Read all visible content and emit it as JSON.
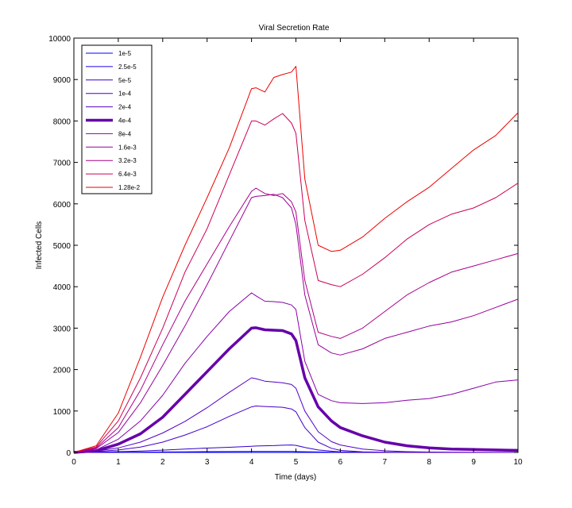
{
  "chart_data": {
    "type": "line",
    "title": "Viral Secretion Rate",
    "xlabel": "Time (days)",
    "ylabel": "Infected Cells",
    "xlim": [
      0,
      10
    ],
    "ylim": [
      0,
      10000
    ],
    "xticks": [
      0,
      1,
      2,
      3,
      4,
      5,
      6,
      7,
      8,
      9,
      10
    ],
    "yticks": [
      0,
      1000,
      2000,
      3000,
      4000,
      5000,
      6000,
      7000,
      8000,
      9000,
      10000
    ],
    "legend_position": "top-left",
    "x": [
      0,
      0.5,
      1,
      1.5,
      2,
      2.5,
      3,
      3.5,
      4,
      4.1,
      4.3,
      4.5,
      4.7,
      4.9,
      5,
      5.2,
      5.5,
      5.8,
      6,
      6.5,
      7,
      7.5,
      8,
      8.5,
      9,
      9.5,
      10
    ],
    "series": [
      {
        "name": "1e-5",
        "color": "#0000ff",
        "width": 1.0,
        "values": [
          0,
          0,
          0,
          0,
          0,
          0,
          0,
          0,
          0,
          0,
          0,
          0,
          0,
          0,
          0,
          0,
          0,
          0,
          0,
          0,
          0,
          0,
          0,
          0,
          0,
          0,
          0
        ]
      },
      {
        "name": "2.5e-5",
        "color": "#1a00ee",
        "width": 1.0,
        "values": [
          0,
          2,
          5,
          8,
          12,
          15,
          20,
          22,
          25,
          25,
          25,
          24,
          24,
          23,
          22,
          18,
          12,
          8,
          5,
          3,
          2,
          1,
          1,
          1,
          0,
          0,
          0
        ]
      },
      {
        "name": "5e-5",
        "color": "#3300cc",
        "width": 1.0,
        "values": [
          0,
          8,
          20,
          35,
          55,
          80,
          105,
          125,
          150,
          155,
          160,
          165,
          175,
          180,
          170,
          120,
          60,
          30,
          15,
          5,
          2,
          1,
          0,
          0,
          0,
          0,
          0
        ]
      },
      {
        "name": "1e-4",
        "color": "#4400cc",
        "width": 1.0,
        "values": [
          0,
          20,
          60,
          130,
          250,
          420,
          620,
          870,
          1100,
          1120,
          1110,
          1100,
          1090,
          1050,
          980,
          600,
          250,
          100,
          50,
          15,
          5,
          2,
          1,
          0,
          0,
          0,
          0
        ]
      },
      {
        "name": "2e-4",
        "color": "#5500c8",
        "width": 1.0,
        "values": [
          0,
          30,
          110,
          250,
          470,
          750,
          1080,
          1450,
          1800,
          1780,
          1720,
          1700,
          1680,
          1640,
          1550,
          1000,
          500,
          260,
          180,
          80,
          40,
          20,
          10,
          5,
          3,
          2,
          1
        ]
      },
      {
        "name": "4e-4",
        "color": "#6600aa",
        "width": 3.5,
        "values": [
          0,
          40,
          200,
          450,
          850,
          1400,
          1950,
          2500,
          3000,
          3010,
          2960,
          2950,
          2940,
          2860,
          2700,
          1800,
          1100,
          760,
          600,
          400,
          250,
          160,
          110,
          80,
          70,
          60,
          50
        ]
      },
      {
        "name": "8e-4",
        "color": "#8800aa",
        "width": 1.0,
        "values": [
          0,
          60,
          320,
          760,
          1380,
          2150,
          2800,
          3400,
          3850,
          3780,
          3650,
          3640,
          3620,
          3560,
          3450,
          2200,
          1400,
          1250,
          1200,
          1180,
          1200,
          1260,
          1300,
          1400,
          1550,
          1700,
          1750
        ]
      },
      {
        "name": "1.6e-3",
        "color": "#990099",
        "width": 1.0,
        "values": [
          0,
          90,
          480,
          1200,
          2100,
          3050,
          4050,
          5100,
          6150,
          6180,
          6200,
          6230,
          6150,
          5900,
          5500,
          3800,
          2600,
          2400,
          2350,
          2500,
          2750,
          2900,
          3050,
          3150,
          3300,
          3500,
          3700
        ]
      },
      {
        "name": "3.2e-3",
        "color": "#aa0088",
        "width": 1.0,
        "values": [
          0,
          110,
          600,
          1500,
          2600,
          3650,
          4550,
          5450,
          6300,
          6380,
          6250,
          6200,
          6250,
          6050,
          5800,
          4150,
          2900,
          2800,
          2750,
          3000,
          3400,
          3800,
          4100,
          4350,
          4500,
          4650,
          4800
        ]
      },
      {
        "name": "6.4e-3",
        "color": "#cc0055",
        "width": 1.0,
        "values": [
          0,
          130,
          760,
          1800,
          3000,
          4350,
          5400,
          6700,
          8000,
          8000,
          7900,
          8050,
          8180,
          7950,
          7700,
          5600,
          4150,
          4050,
          4000,
          4300,
          4700,
          5150,
          5500,
          5750,
          5900,
          6150,
          6500
        ]
      },
      {
        "name": "1.28e-2",
        "color": "#ee0000",
        "width": 1.0,
        "values": [
          0,
          160,
          950,
          2300,
          3750,
          5000,
          6150,
          7350,
          8780,
          8800,
          8700,
          9050,
          9120,
          9180,
          9320,
          6600,
          5000,
          4850,
          4880,
          5200,
          5650,
          6050,
          6400,
          6850,
          7300,
          7650,
          8200
        ]
      }
    ]
  }
}
